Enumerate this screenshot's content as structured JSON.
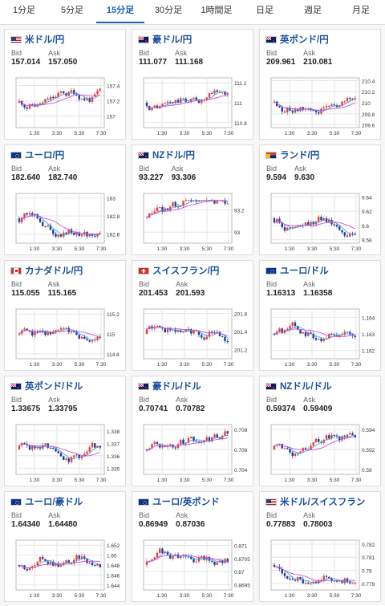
{
  "tabs": [
    {
      "label": "1分足",
      "active": false
    },
    {
      "label": "5分足",
      "active": false
    },
    {
      "label": "15分足",
      "active": true
    },
    {
      "label": "30分足",
      "active": false
    },
    {
      "label": "1時間足",
      "active": false
    },
    {
      "label": "日足",
      "active": false
    },
    {
      "label": "週足",
      "active": false
    },
    {
      "label": "月足",
      "active": false
    }
  ],
  "labels": {
    "bid": "Bid",
    "ask": "Ask"
  },
  "x_ticks": [
    "1:30",
    "3:30",
    "5:30",
    "7:30"
  ],
  "colors": {
    "up": "#e8403a",
    "down": "#1f3d9c",
    "ma": "#d14fd6",
    "grid": "#e6e6e6",
    "accent": "#1a5fb4"
  },
  "cards": [
    {
      "pair": "米ドル/円",
      "flag": "us-jp-flag",
      "bid": "157.014",
      "ask": "157.050",
      "y_ticks": [
        "157.4",
        "157.2",
        "157"
      ],
      "ylim": [
        156.85,
        157.5
      ]
    },
    {
      "pair": "豪ドル/円",
      "flag": "au-jp-flag",
      "bid": "111.077",
      "ask": "111.168",
      "y_ticks": [
        "111.2",
        "111",
        "110.8"
      ],
      "ylim": [
        110.75,
        111.25
      ]
    },
    {
      "pair": "英ポンド/円",
      "flag": "gb-jp-flag",
      "bid": "209.961",
      "ask": "210.081",
      "y_ticks": [
        "210.4",
        "210.2",
        "210",
        "209.8",
        "209.6"
      ],
      "ylim": [
        209.55,
        210.45
      ]
    },
    {
      "pair": "ユーロ/円",
      "flag": "eu-jp-flag",
      "bid": "182.640",
      "ask": "182.740",
      "y_ticks": [
        "183",
        "182.8",
        "182.6"
      ],
      "ylim": [
        182.5,
        183.05
      ]
    },
    {
      "pair": "NZドル/円",
      "flag": "nz-jp-flag",
      "bid": "93.227",
      "ask": "93.306",
      "y_ticks": [
        "93.2",
        "93"
      ],
      "ylim": [
        92.9,
        93.35
      ]
    },
    {
      "pair": "ランド/円",
      "flag": "za-jp-flag",
      "bid": "9.594",
      "ask": "9.630",
      "y_ticks": [
        "9.64",
        "9.62",
        "9.6",
        "9.58"
      ],
      "ylim": [
        9.575,
        9.645
      ]
    },
    {
      "pair": "カナダドル/円",
      "flag": "ca-jp-flag",
      "bid": "115.055",
      "ask": "115.165",
      "y_ticks": [
        "115.2",
        "115",
        "114.8"
      ],
      "ylim": [
        114.75,
        115.25
      ]
    },
    {
      "pair": "スイスフラン/円",
      "flag": "ch-jp-flag",
      "bid": "201.453",
      "ask": "201.593",
      "y_ticks": [
        "201.6",
        "201.4",
        "201.2"
      ],
      "ylim": [
        201.1,
        201.65
      ]
    },
    {
      "pair": "ユーロ/ドル",
      "flag": "eu-us-flag",
      "bid": "1.16313",
      "ask": "1.16358",
      "y_ticks": [
        "1.164",
        "1.163",
        "1.162"
      ],
      "ylim": [
        1.1615,
        1.1645
      ]
    },
    {
      "pair": "英ポンド/ドル",
      "flag": "gb-us-flag",
      "bid": "1.33675",
      "ask": "1.33795",
      "y_ticks": [
        "1.338",
        "1.337",
        "1.336",
        "1.335"
      ],
      "ylim": [
        1.3345,
        1.3385
      ]
    },
    {
      "pair": "豪ドル/ドル",
      "flag": "au-us-flag",
      "bid": "0.70741",
      "ask": "0.70782",
      "y_ticks": [
        "0.708",
        "0.706",
        "0.704"
      ],
      "ylim": [
        0.7035,
        0.7085
      ]
    },
    {
      "pair": "NZドル/ドル",
      "flag": "nz-us-flag",
      "bid": "0.59374",
      "ask": "0.59409",
      "y_ticks": [
        "0.594",
        "0.592",
        "0.59"
      ],
      "ylim": [
        0.5895,
        0.5945
      ]
    },
    {
      "pair": "ユーロ/豪ドル",
      "flag": "eu-au-flag",
      "bid": "1.64340",
      "ask": "1.64480",
      "y_ticks": [
        "1.652",
        "1.65",
        "1.648",
        "1.646",
        "1.644"
      ],
      "ylim": [
        1.643,
        1.653
      ]
    },
    {
      "pair": "ユーロ/英ポンド",
      "flag": "eu-gb-flag",
      "bid": "0.86949",
      "ask": "0.87036",
      "y_ticks": [
        "0.871",
        "0.8705",
        "0.87",
        "0.8695"
      ],
      "ylim": [
        0.8693,
        0.8712
      ]
    },
    {
      "pair": "米ドル/スイスフラン",
      "flag": "us-ch-flag",
      "bid": "0.77883",
      "ask": "0.78003",
      "y_ticks": [
        "0.782",
        "0.781",
        "0.78",
        "0.779"
      ],
      "ylim": [
        0.7785,
        0.7823
      ]
    }
  ]
}
